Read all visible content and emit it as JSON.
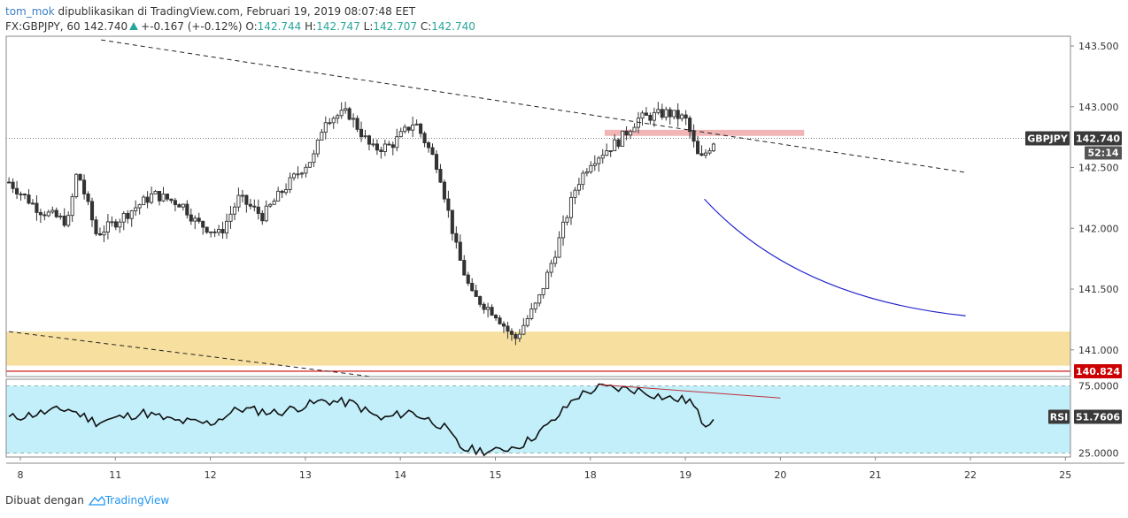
{
  "header": {
    "author": "tom_mok",
    "published_text": "dipublikasikan di TradingView.com, Februari 19, 2019 08:07:48 EET",
    "symbol_line": "FX:GBPJPY, 60",
    "last": "142.740",
    "change": "+-0.167 (+-0.12%)",
    "o_label": "O:",
    "o_value": "142.744",
    "h_label": "H:",
    "h_value": "142.747",
    "l_label": "L:",
    "l_value": "142.707",
    "c_label": "C:",
    "c_value": "142.740"
  },
  "badges": {
    "symbol": "GBPJPY",
    "price": "142.740",
    "countdown": "52:14",
    "level": "140.824",
    "rsi_label": "RSI",
    "rsi_value": "51.7606"
  },
  "footer": {
    "made_with": "Dibuat dengan",
    "brand": "TradingView"
  },
  "colors": {
    "up": "#333333",
    "down": "#333333",
    "zone": "#f7df9f",
    "resistance": "#f2b5b5",
    "support_line": "#cc0000",
    "curve": "#2222cc",
    "rsi_band": "#c2effa",
    "rsi_line": "#111111",
    "rsi_trend": "#c0303a"
  },
  "chart_data": {
    "type": "candlestick",
    "symbol": "FX:GBPJPY",
    "interval": "60",
    "price_axis": {
      "ylim": [
        140.78,
        143.58
      ],
      "ticks": [
        143.5,
        143.0,
        142.5,
        142.0,
        141.5,
        141.0
      ],
      "tick_labels": [
        "143.500",
        "143.000",
        "142.500",
        "142.000",
        "141.500",
        "141.000"
      ]
    },
    "rsi_axis": {
      "ylim": [
        22,
        80
      ],
      "ticks": [
        75,
        25
      ],
      "tick_labels": [
        "75.0000",
        "25.0000"
      ]
    },
    "time_axis": {
      "labels": [
        "8",
        "11",
        "12",
        "13",
        "14",
        "15",
        "18",
        "19",
        "20",
        "21",
        "22",
        "25"
      ],
      "positions": [
        0,
        1,
        2,
        3,
        4,
        5,
        6,
        7,
        8,
        9,
        10,
        11
      ]
    },
    "last_price": 142.74,
    "support_level": 140.824,
    "demand_zone": [
      140.87,
      141.15
    ],
    "resistance_zone": [
      142.76,
      142.81
    ],
    "day_anchors": [
      {
        "d": -0.12,
        "p": 142.38
      },
      {
        "d": 0.2,
        "p": 142.15
      },
      {
        "d": 0.5,
        "p": 142.05
      },
      {
        "d": 0.6,
        "p": 142.48
      },
      {
        "d": 0.8,
        "p": 141.95
      },
      {
        "d": 1.0,
        "p": 142.05
      },
      {
        "d": 1.4,
        "p": 142.28
      },
      {
        "d": 1.7,
        "p": 142.2
      },
      {
        "d": 1.85,
        "p": 142.05
      },
      {
        "d": 2.1,
        "p": 141.95
      },
      {
        "d": 2.3,
        "p": 142.25
      },
      {
        "d": 2.55,
        "p": 142.1
      },
      {
        "d": 2.75,
        "p": 142.3
      },
      {
        "d": 2.95,
        "p": 142.48
      },
      {
        "d": 3.1,
        "p": 142.6
      },
      {
        "d": 3.2,
        "p": 142.9
      },
      {
        "d": 3.45,
        "p": 142.95
      },
      {
        "d": 3.7,
        "p": 142.65
      },
      {
        "d": 3.9,
        "p": 142.68
      },
      {
        "d": 4.15,
        "p": 142.88
      },
      {
        "d": 4.4,
        "p": 142.5
      },
      {
        "d": 4.6,
        "p": 141.8
      },
      {
        "d": 4.75,
        "p": 141.45
      },
      {
        "d": 5.0,
        "p": 141.3
      },
      {
        "d": 5.2,
        "p": 141.08
      },
      {
        "d": 5.45,
        "p": 141.4
      },
      {
        "d": 5.65,
        "p": 141.85
      },
      {
        "d": 5.85,
        "p": 142.35
      },
      {
        "d": 6.0,
        "p": 142.55
      },
      {
        "d": 6.3,
        "p": 142.72
      },
      {
        "d": 6.5,
        "p": 142.9
      },
      {
        "d": 6.8,
        "p": 142.95
      },
      {
        "d": 7.0,
        "p": 142.9
      },
      {
        "d": 7.15,
        "p": 142.55
      },
      {
        "d": 7.3,
        "p": 142.72
      }
    ],
    "rsi_anchors": [
      {
        "d": -0.12,
        "p": 51
      },
      {
        "d": 0.5,
        "p": 58
      },
      {
        "d": 0.8,
        "p": 48
      },
      {
        "d": 1.3,
        "p": 55
      },
      {
        "d": 1.6,
        "p": 49
      },
      {
        "d": 2.0,
        "p": 47
      },
      {
        "d": 2.3,
        "p": 58
      },
      {
        "d": 2.7,
        "p": 55
      },
      {
        "d": 3.2,
        "p": 64
      },
      {
        "d": 3.5,
        "p": 62
      },
      {
        "d": 3.8,
        "p": 50
      },
      {
        "d": 4.1,
        "p": 56
      },
      {
        "d": 4.45,
        "p": 45
      },
      {
        "d": 4.65,
        "p": 28
      },
      {
        "d": 5.0,
        "p": 26
      },
      {
        "d": 5.3,
        "p": 32
      },
      {
        "d": 5.6,
        "p": 48
      },
      {
        "d": 5.85,
        "p": 67
      },
      {
        "d": 6.1,
        "p": 74
      },
      {
        "d": 6.5,
        "p": 72
      },
      {
        "d": 6.8,
        "p": 66
      },
      {
        "d": 7.05,
        "p": 64
      },
      {
        "d": 7.2,
        "p": 46
      },
      {
        "d": 7.3,
        "p": 52
      }
    ],
    "annotations": [
      {
        "kind": "trendline",
        "style": "dashed",
        "from": {
          "d": 0.85,
          "p": 143.55
        },
        "to": {
          "d": 9.95,
          "p": 142.46
        }
      },
      {
        "kind": "trendline",
        "style": "dashed",
        "from": {
          "d": -0.12,
          "p": 141.15
        },
        "to": {
          "d": 4.0,
          "p": 140.75
        }
      },
      {
        "kind": "curve",
        "from": {
          "d": 7.2,
          "p": 142.24
        },
        "to": {
          "d": 9.95,
          "p": 141.28
        }
      },
      {
        "kind": "rsi_trendline",
        "from": {
          "d": 6.1,
          "p": 76
        },
        "to": {
          "d": 8.0,
          "p": 66
        }
      }
    ]
  }
}
